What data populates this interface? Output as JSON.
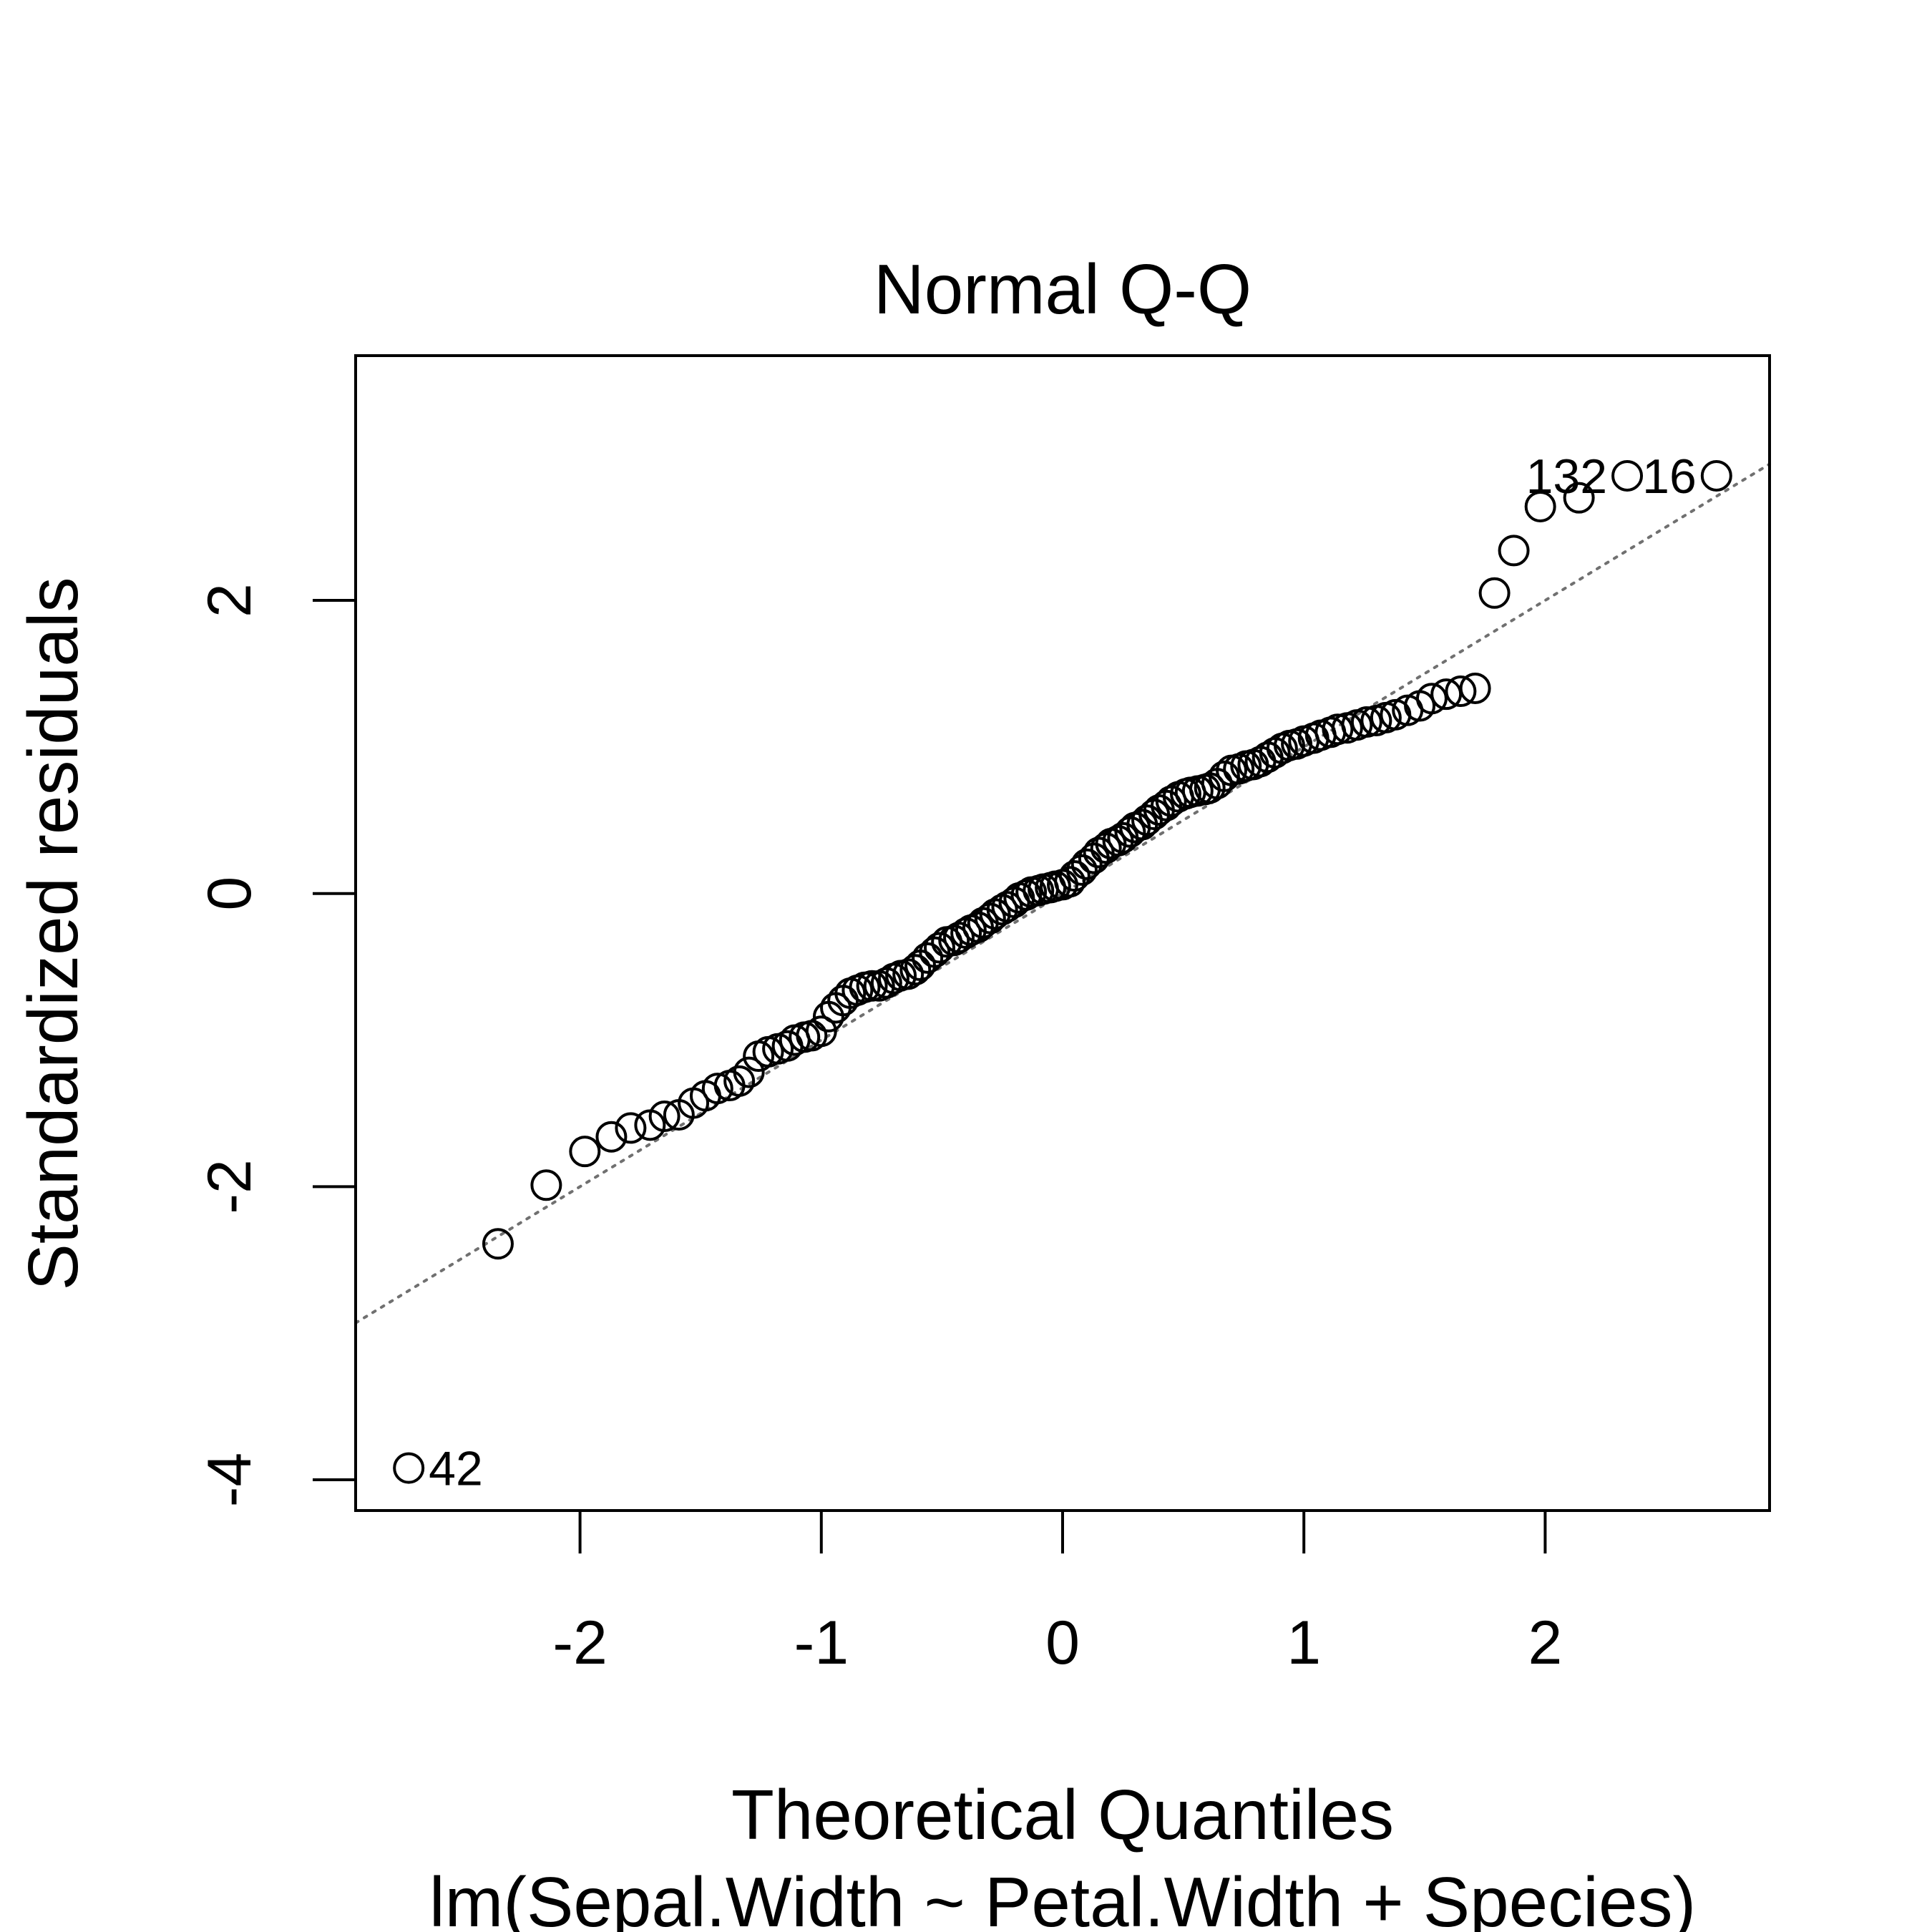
{
  "chart_data": {
    "type": "scatter",
    "title": "Normal Q-Q",
    "xlabel": "Theoretical Quantiles",
    "ylabel": "Standardized residuals",
    "subtitle": "lm(Sepal.Width ~ Petal.Width + Species)",
    "xlim": [
      -2.93,
      2.93
    ],
    "ylim": [
      -4.21,
      3.67
    ],
    "x_ticks": [
      -2,
      -1,
      0,
      1,
      2
    ],
    "x_tick_labels": [
      "-2",
      "-1",
      "0",
      "1",
      "2"
    ],
    "y_ticks": [
      -4,
      -2,
      0,
      2
    ],
    "y_tick_labels": [
      "-4",
      "-2",
      "0",
      "2"
    ],
    "reference_line": {
      "style": "dotted",
      "color": "#707070",
      "slope": 1.0,
      "intercept": 0.0
    },
    "grid": false,
    "colors": {
      "points": "#000000",
      "reference_line": "#707070"
    },
    "series": [
      {
        "x": [
          -2.71,
          -2.34,
          -2.14,
          -1.98,
          -1.87,
          -1.79,
          -1.71,
          -1.65,
          -1.59,
          -1.53,
          -1.48,
          -1.43,
          -1.38,
          -1.34,
          -1.3,
          -1.26,
          -1.22,
          -1.18,
          -1.14,
          -1.11,
          -1.07,
          -1.04,
          -1.0,
          -0.97,
          -0.94,
          -0.91,
          -0.88,
          -0.85,
          -0.82,
          -0.79,
          -0.76,
          -0.73,
          -0.7,
          -0.67,
          -0.64,
          -0.61,
          -0.59,
          -0.56,
          -0.53,
          -0.51,
          -0.48,
          -0.45,
          -0.43,
          -0.4,
          -0.38,
          -0.35,
          -0.33,
          -0.3,
          -0.28,
          -0.25,
          -0.23,
          -0.2,
          -0.18,
          -0.15,
          -0.13,
          -0.1,
          -0.08,
          -0.05,
          -0.03,
          0.0,
          0.03,
          0.05,
          0.08,
          0.1,
          0.13,
          0.15,
          0.18,
          0.2,
          0.23,
          0.25,
          0.28,
          0.3,
          0.33,
          0.35,
          0.38,
          0.4,
          0.43,
          0.45,
          0.48,
          0.51,
          0.53,
          0.56,
          0.59,
          0.61,
          0.64,
          0.67,
          0.7,
          0.73,
          0.76,
          0.79,
          0.82,
          0.85,
          0.88,
          0.91,
          0.94,
          0.97,
          1.0,
          1.04,
          1.07,
          1.11,
          1.14,
          1.18,
          1.22,
          1.26,
          1.3,
          1.34,
          1.38,
          1.43,
          1.48,
          1.53,
          1.59,
          1.65,
          1.71,
          1.79,
          1.87,
          1.98,
          2.14,
          2.34,
          2.71
        ],
        "y": [
          -3.92,
          -2.39,
          -1.99,
          -1.76,
          -1.66,
          -1.6,
          -1.58,
          -1.52,
          -1.51,
          -1.43,
          -1.38,
          -1.33,
          -1.31,
          -1.28,
          -1.22,
          -1.11,
          -1.08,
          -1.06,
          -1.04,
          -1.0,
          -0.98,
          -0.97,
          -0.94,
          -0.84,
          -0.78,
          -0.73,
          -0.68,
          -0.66,
          -0.64,
          -0.63,
          -0.63,
          -0.61,
          -0.58,
          -0.56,
          -0.55,
          -0.52,
          -0.49,
          -0.44,
          -0.4,
          -0.37,
          -0.33,
          -0.32,
          -0.3,
          -0.27,
          -0.25,
          -0.23,
          -0.2,
          -0.17,
          -0.14,
          -0.11,
          -0.09,
          -0.06,
          -0.03,
          -0.01,
          0.01,
          0.02,
          0.03,
          0.04,
          0.05,
          0.06,
          0.08,
          0.12,
          0.16,
          0.2,
          0.24,
          0.28,
          0.31,
          0.34,
          0.36,
          0.38,
          0.42,
          0.45,
          0.47,
          0.5,
          0.54,
          0.57,
          0.6,
          0.63,
          0.66,
          0.68,
          0.69,
          0.7,
          0.71,
          0.72,
          0.75,
          0.8,
          0.84,
          0.85,
          0.87,
          0.88,
          0.9,
          0.93,
          0.96,
          0.99,
          1.01,
          1.02,
          1.04,
          1.06,
          1.08,
          1.1,
          1.12,
          1.13,
          1.15,
          1.17,
          1.18,
          1.2,
          1.22,
          1.25,
          1.28,
          1.33,
          1.36,
          1.38,
          1.4,
          2.05,
          2.34,
          2.64,
          2.7,
          2.85,
          2.85
        ]
      }
    ],
    "point_labels": [
      {
        "text": "42",
        "x": -2.71,
        "y": -3.92,
        "side": "right"
      },
      {
        "text": "132",
        "x": 2.34,
        "y": 2.85,
        "side": "left"
      },
      {
        "text": "16",
        "x": 2.71,
        "y": 2.85,
        "side": "left"
      }
    ]
  }
}
